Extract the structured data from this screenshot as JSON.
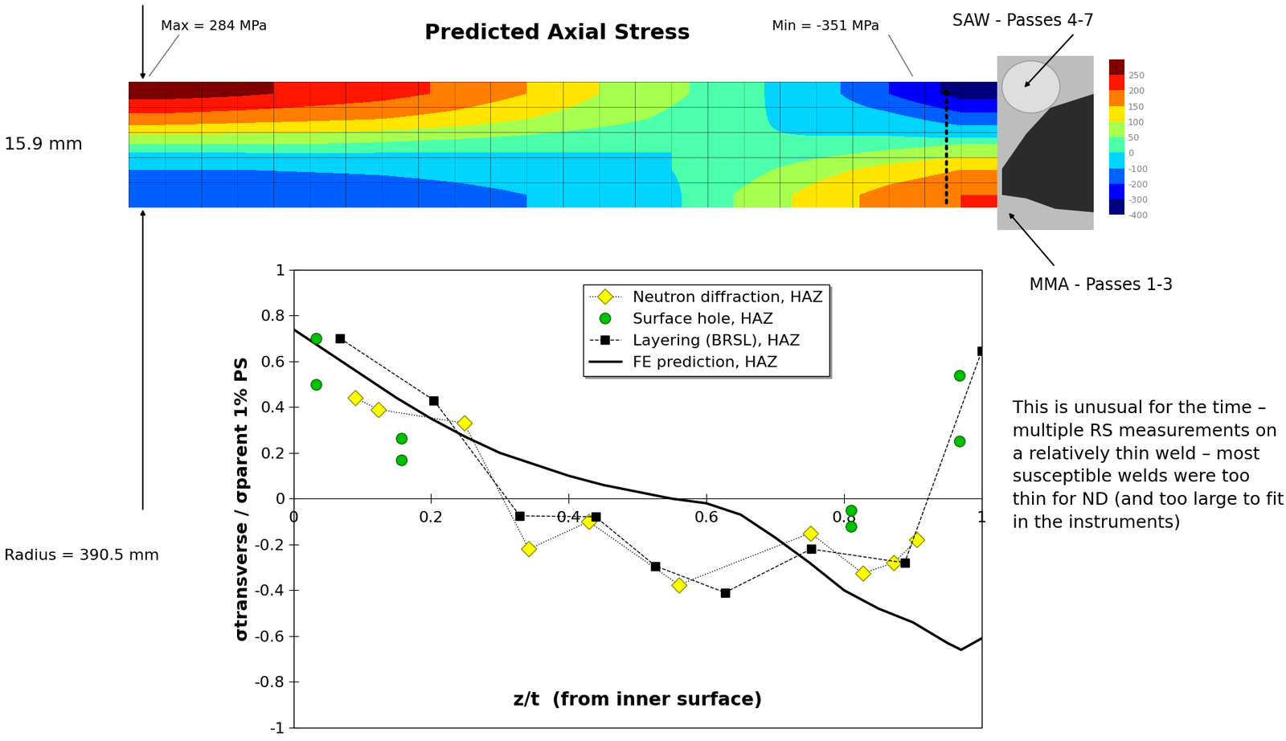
{
  "chart_data": {
    "type": "line",
    "x_label": "z/t  (from inner surface)",
    "y_label": "σtransverse / σparent 1% PS",
    "xlim": [
      0,
      1
    ],
    "ylim": [
      -1,
      1
    ],
    "xticks": [
      0,
      0.2,
      0.4,
      0.6,
      0.8,
      1
    ],
    "yticks": [
      -1,
      -0.8,
      -0.6,
      -0.4,
      -0.2,
      0,
      0.2,
      0.4,
      0.6,
      0.8,
      1
    ],
    "legend": "upper center",
    "series": [
      {
        "name": "Neutron diffraction, HAZ",
        "color": "#ffff00",
        "marker": "diamond",
        "line_style": "dotted",
        "x": [
          0.09,
          0.123,
          0.248,
          0.342,
          0.429,
          0.56,
          0.751,
          0.827,
          0.872,
          0.906
        ],
        "values": [
          0.44,
          0.39,
          0.33,
          -0.22,
          -0.1,
          -0.376,
          -0.15,
          -0.326,
          -0.28,
          -0.18
        ]
      },
      {
        "name": "Surface hole, HAZ",
        "color": "#00c000",
        "marker": "circle",
        "line_style": "none",
        "x": [
          0.033,
          0.033,
          0.157,
          0.157,
          0.81,
          0.81,
          0.968,
          0.968
        ],
        "values": [
          0.7,
          0.5,
          0.265,
          0.17,
          -0.05,
          -0.12,
          0.54,
          0.25
        ]
      },
      {
        "name": "Layering (BRSL), HAZ",
        "color": "#000000",
        "marker": "square",
        "line_style": "dashed",
        "x": [
          0.068,
          0.204,
          0.329,
          0.439,
          0.526,
          0.627,
          0.752,
          0.888,
          1.0
        ],
        "values": [
          0.7,
          0.43,
          -0.075,
          -0.079,
          -0.294,
          -0.41,
          -0.22,
          -0.28,
          0.645
        ]
      },
      {
        "name": "FE prediction, HAZ",
        "color": "#000000",
        "marker": "none",
        "line_style": "solid",
        "x": [
          0,
          0.05,
          0.1,
          0.15,
          0.2,
          0.25,
          0.3,
          0.35,
          0.4,
          0.45,
          0.5,
          0.55,
          0.6,
          0.65,
          0.7,
          0.75,
          0.8,
          0.85,
          0.9,
          0.95,
          0.97,
          1.0
        ],
        "values": [
          0.74,
          0.64,
          0.54,
          0.44,
          0.35,
          0.27,
          0.2,
          0.15,
          0.1,
          0.06,
          0.03,
          0.0,
          -0.02,
          -0.07,
          -0.17,
          -0.28,
          -0.4,
          -0.48,
          -0.54,
          -0.63,
          -0.66,
          -0.61
        ]
      }
    ]
  },
  "stress_map": {
    "title": "Predicted Axial Stress",
    "max_label": "Max = 284 MPa",
    "min_label": "Min = -351 MPa",
    "thickness_label": "15.9 mm",
    "radius_label": "Radius = 390.5 mm",
    "saw_label": "SAW - Passes 4-7",
    "mma_label": "MMA - Passes 1-3",
    "cells": [
      [
        270,
        260,
        240,
        220,
        190,
        150,
        100,
        60,
        20,
        -50,
        -200,
        -340
      ],
      [
        180,
        170,
        160,
        150,
        130,
        100,
        70,
        40,
        10,
        -20,
        -60,
        -150
      ],
      [
        50,
        50,
        50,
        40,
        30,
        20,
        10,
        0,
        0,
        10,
        30,
        50
      ],
      [
        -100,
        -100,
        -90,
        -80,
        -60,
        -40,
        -20,
        0,
        30,
        80,
        120,
        150
      ],
      [
        -200,
        -200,
        -190,
        -170,
        -140,
        -100,
        -60,
        -10,
        60,
        120,
        170,
        200
      ]
    ],
    "colorbar": {
      "range": [
        -400,
        300
      ],
      "ticks": [
        250,
        200,
        150,
        100,
        50,
        0,
        -100,
        -200,
        -300,
        -400
      ]
    }
  },
  "note": "This is unusual for the time – multiple RS measurements on a relatively thin weld – most susceptible welds were too thin for ND (and too large to fit in the instruments)"
}
